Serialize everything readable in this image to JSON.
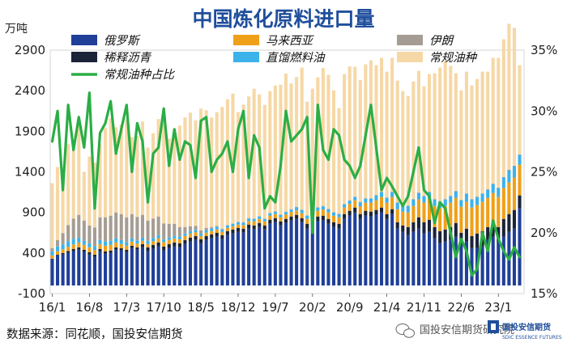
{
  "chart_data": {
    "type": "bar",
    "title": "中国炼化原料进口量",
    "y_unit": "万吨",
    "ylim": [
      -100,
      2900
    ],
    "y_ticks": [
      "-100",
      "400",
      "900",
      "1400",
      "1900",
      "2400",
      "2900"
    ],
    "y2lim": [
      15,
      35
    ],
    "y2_ticks": [
      "15%",
      "20%",
      "25%",
      "30%",
      "35%"
    ],
    "x_tick_labels": [
      "16/1",
      "16/8",
      "17/3",
      "17/10",
      "18/5",
      "18/12",
      "19/7",
      "20/2",
      "20/9",
      "21/4",
      "21/11",
      "22/6",
      "23/1"
    ],
    "months": 89,
    "source": "数据来源：同花顺，国投安信期货",
    "watermark": "国投安信期货研究院",
    "logo_text": "国投安信期货",
    "logo_subtext": "SDIC ESSENCE FUTURES",
    "colors": {
      "russia": "#1f3f98",
      "bitumen": "#1a2338",
      "malaysia": "#f0a018",
      "fueloil": "#3cb2ea",
      "iran": "#a59d93",
      "regular": "#f6d8a6",
      "share": "#2bae45",
      "title": "#1f4e9c"
    },
    "legend": [
      {
        "key": "russia",
        "label": "俄罗斯"
      },
      {
        "key": "malaysia",
        "label": "马来西亚"
      },
      {
        "key": "iran",
        "label": "伊朗"
      },
      {
        "key": "bitumen",
        "label": "稀释沥青"
      },
      {
        "key": "fueloil",
        "label": "直馏燃料油"
      },
      {
        "key": "regular",
        "label": "常规油种"
      },
      {
        "key": "share",
        "label": "常规油种占比"
      }
    ],
    "series": [
      {
        "name": "俄罗斯",
        "key": "russia",
        "values": [
          330,
          370,
          380,
          400,
          420,
          440,
          410,
          380,
          350,
          420,
          390,
          400,
          440,
          430,
          410,
          460,
          440,
          470,
          420,
          450,
          480,
          430,
          460,
          480,
          470,
          510,
          540,
          560,
          520,
          560,
          580,
          600,
          570,
          620,
          640,
          660,
          650,
          700,
          690,
          720,
          690,
          760,
          780,
          740,
          770,
          800,
          820,
          780,
          700,
          750,
          790,
          800,
          760,
          720,
          700,
          820,
          860,
          900,
          820,
          860,
          850,
          870,
          900,
          820,
          880,
          700,
          660,
          620,
          660,
          700,
          640,
          660,
          580,
          520,
          540,
          560,
          600,
          500,
          540,
          460,
          460,
          480,
          560,
          600,
          540,
          600,
          660,
          700,
          950
        ]
      },
      {
        "name": "稀释沥青",
        "key": "bitumen",
        "values": [
          0,
          10,
          20,
          25,
          30,
          30,
          30,
          30,
          30,
          30,
          30,
          30,
          30,
          30,
          30,
          30,
          30,
          40,
          50,
          50,
          50,
          50,
          50,
          50,
          50,
          50,
          50,
          50,
          50,
          50,
          50,
          50,
          50,
          50,
          50,
          50,
          50,
          50,
          50,
          50,
          50,
          50,
          50,
          50,
          50,
          50,
          50,
          50,
          60,
          60,
          60,
          60,
          60,
          60,
          60,
          60,
          60,
          60,
          60,
          60,
          60,
          60,
          60,
          60,
          60,
          80,
          80,
          100,
          120,
          140,
          140,
          150,
          140,
          150,
          150,
          160,
          170,
          150,
          160,
          150,
          180,
          190,
          160,
          170,
          180,
          220,
          220,
          230,
          160
        ]
      },
      {
        "name": "马来西亚",
        "key": "malaysia",
        "values": [
          40,
          40,
          45,
          50,
          55,
          60,
          60,
          60,
          55,
          60,
          70,
          70,
          60,
          50,
          50,
          50,
          45,
          40,
          40,
          45,
          50,
          55,
          50,
          50,
          50,
          50,
          50,
          45,
          40,
          40,
          40,
          40,
          40,
          40,
          40,
          40,
          45,
          45,
          50,
          50,
          50,
          50,
          50,
          50,
          55,
          55,
          55,
          60,
          60,
          70,
          70,
          75,
          80,
          80,
          80,
          80,
          85,
          90,
          95,
          100,
          110,
          120,
          130,
          140,
          150,
          160,
          170,
          180,
          200,
          220,
          240,
          260,
          260,
          280,
          290,
          300,
          310,
          320,
          330,
          350,
          350,
          360,
          360,
          370,
          370,
          380,
          390,
          400,
          380
        ]
      },
      {
        "name": "直馏燃料油",
        "key": "fueloil",
        "values": [
          50,
          60,
          60,
          70,
          70,
          60,
          50,
          50,
          50,
          50,
          50,
          50,
          50,
          50,
          40,
          40,
          40,
          40,
          40,
          40,
          40,
          30,
          30,
          30,
          30,
          30,
          30,
          30,
          30,
          30,
          30,
          30,
          30,
          30,
          30,
          30,
          30,
          30,
          30,
          30,
          30,
          30,
          30,
          30,
          30,
          30,
          40,
          40,
          40,
          40,
          40,
          40,
          40,
          40,
          40,
          40,
          40,
          40,
          50,
          50,
          50,
          60,
          60,
          60,
          60,
          80,
          80,
          80,
          80,
          80,
          80,
          80,
          80,
          80,
          80,
          80,
          80,
          80,
          100,
          100,
          100,
          100,
          100,
          110,
          110,
          130,
          150,
          140,
          120
        ]
      },
      {
        "name": "伊朗",
        "key": "iran",
        "values": [
          40,
          80,
          140,
          200,
          250,
          280,
          250,
          220,
          230,
          280,
          300,
          310,
          320,
          320,
          310,
          300,
          290,
          280,
          250,
          240,
          230,
          200,
          170,
          150,
          120,
          80,
          60,
          50,
          40,
          30,
          20,
          15,
          10,
          5,
          5,
          5,
          5,
          5,
          5,
          5,
          5,
          5,
          5,
          5,
          5,
          5,
          5,
          5,
          5,
          5,
          5,
          5,
          5,
          5,
          5,
          5,
          5,
          5,
          5,
          5,
          5,
          5,
          5,
          5,
          5,
          5,
          5,
          5,
          5,
          5,
          5,
          5,
          5,
          5,
          5,
          5,
          5,
          5,
          5,
          5,
          5,
          5,
          5,
          5,
          5,
          5,
          5,
          5,
          5
        ]
      },
      {
        "name": "常规油种",
        "key": "regular",
        "values": [
          800,
          900,
          700,
          1000,
          850,
          1100,
          600,
          850,
          800,
          900,
          1100,
          1200,
          1050,
          1100,
          1200,
          950,
          1000,
          1150,
          900,
          1050,
          1200,
          1300,
          1050,
          1100,
          1250,
          1350,
          1400,
          1300,
          1500,
          1450,
          1350,
          1400,
          1500,
          1550,
          1600,
          1350,
          1450,
          1500,
          1600,
          1500,
          1400,
          1500,
          1550,
          1600,
          1700,
          1550,
          1600,
          1750,
          1400,
          1500,
          1600,
          1700,
          1650,
          1500,
          1300,
          1600,
          1650,
          1600,
          1500,
          1650,
          1700,
          1600,
          1650,
          1550,
          1650,
          1500,
          1400,
          1350,
          1450,
          1500,
          1350,
          1450,
          1550,
          1650,
          1700,
          1600,
          1450,
          1350,
          1500,
          1400,
          1450,
          1500,
          1450,
          1550,
          1600,
          1700,
          1800,
          1700,
          1100
        ]
      },
      {
        "name": "常规油种占比",
        "key": "share",
        "axis": "right",
        "values": [
          27.5,
          30,
          23.5,
          30.5,
          26.8,
          29.5,
          27,
          31.5,
          22,
          28.2,
          29,
          30.8,
          26.5,
          28.5,
          30.5,
          25,
          29,
          27.5,
          22.5,
          26.5,
          27,
          30.2,
          25.5,
          28.5,
          26,
          27.5,
          27.2,
          24.5,
          29.2,
          29.5,
          25,
          26,
          26.5,
          27.5,
          25,
          28.5,
          30,
          24.5,
          28,
          27,
          22,
          23,
          22.5,
          25.5,
          30,
          27.5,
          28,
          28.5,
          29.5,
          20,
          30.5,
          26.8,
          26,
          28.5,
          28,
          26,
          25.5,
          24.5,
          25.5,
          28,
          30.5,
          27,
          23.5,
          24.5,
          23.8,
          23,
          22.2,
          23,
          25,
          27,
          23.5,
          23,
          20.8,
          22.5,
          22,
          20,
          18,
          19.5,
          18.5,
          16.5,
          17,
          20,
          18.5,
          21,
          19.5,
          18.5,
          17.8,
          18.8,
          18
        ]
      }
    ]
  }
}
